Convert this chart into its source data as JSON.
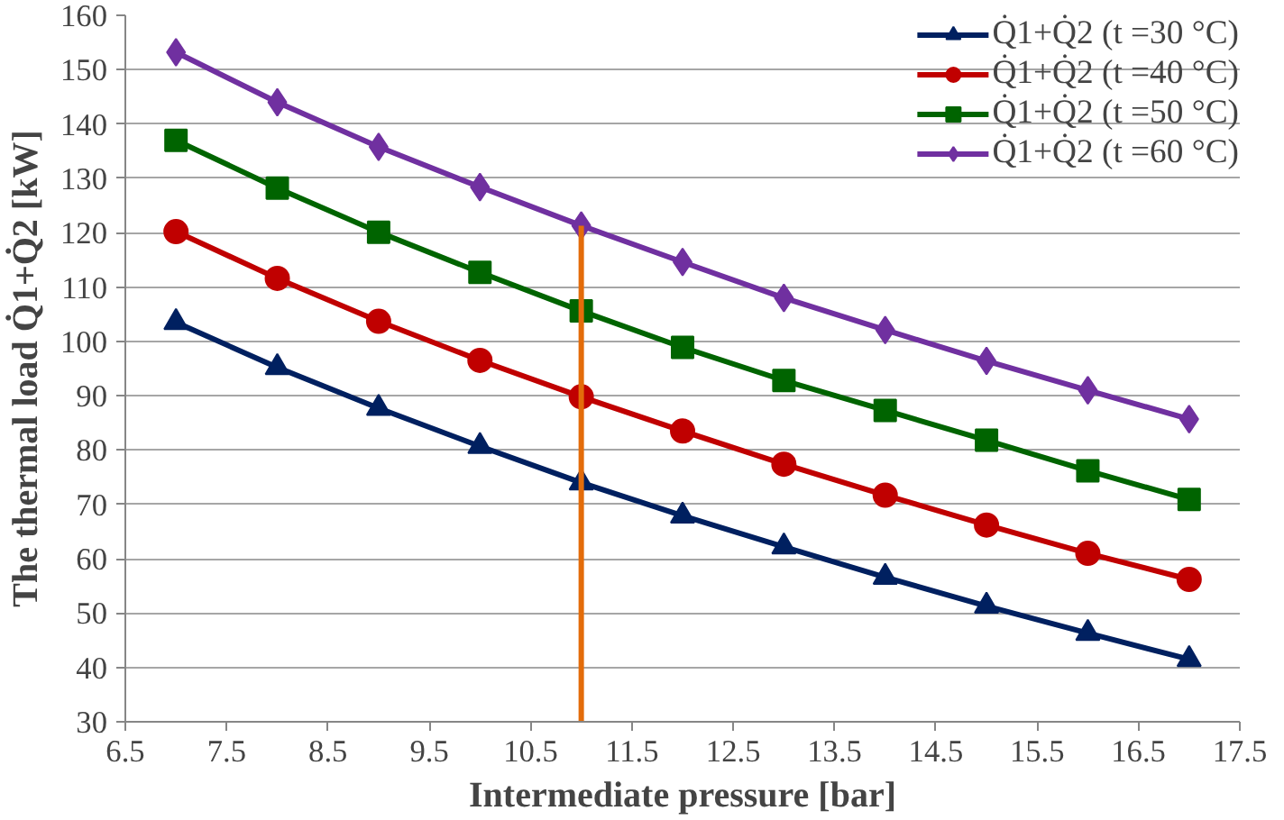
{
  "chart_data": {
    "type": "line",
    "xlabel": "Intermediate pressure [bar]",
    "ylabel": "The thermal load Q̇1+Q̇2 [kW]",
    "x": [
      7,
      8,
      9,
      10,
      11,
      12,
      13,
      14,
      15,
      16,
      17
    ],
    "series": [
      {
        "name": "Q̇1+Q̇2 (t =30 °C)",
        "color": "#002060",
        "marker": "triangle",
        "values": [
          103.5,
          95.2,
          87.7,
          80.7,
          74.0,
          67.9,
          62.2,
          56.6,
          51.3,
          46.3,
          41.5
        ]
      },
      {
        "name": "Q̇1+Q̇2 (t =40 °C)",
        "color": "#c00000",
        "marker": "circle",
        "values": [
          120.2,
          111.6,
          103.7,
          96.5,
          89.8,
          83.5,
          77.4,
          71.7,
          66.2,
          61.0,
          56.2
        ]
      },
      {
        "name": "Q̇1+Q̇2 (t =50 °C)",
        "color": "#006400",
        "marker": "square",
        "values": [
          137.0,
          128.2,
          120.1,
          112.7,
          105.6,
          98.9,
          92.8,
          87.3,
          81.8,
          76.2,
          70.9
        ]
      },
      {
        "name": "Q̇1+Q̇2 (t =60 °C)",
        "color": "#7030a0",
        "marker": "diamond",
        "values": [
          153.2,
          144.0,
          135.8,
          128.4,
          121.3,
          114.6,
          108.0,
          102.1,
          96.4,
          91.0,
          85.7
        ]
      },
      {
        "type": "line",
        "color": "#e36c0a",
        "marker": "none",
        "x": [
          11,
          11
        ],
        "values": [
          121.3,
          30
        ]
      }
    ],
    "xlim": [
      6.5,
      17.5
    ],
    "xticks": [
      6.5,
      7.5,
      8.5,
      9.5,
      10.5,
      11.5,
      12.5,
      13.5,
      14.5,
      15.5,
      16.5,
      17.5
    ],
    "ylim": [
      30,
      160
    ],
    "yticks": [
      30,
      40,
      50,
      60,
      70,
      80,
      90,
      100,
      110,
      120,
      130,
      140,
      150,
      160
    ],
    "grid": "y",
    "legend": "top right",
    "line_style": "solid"
  }
}
